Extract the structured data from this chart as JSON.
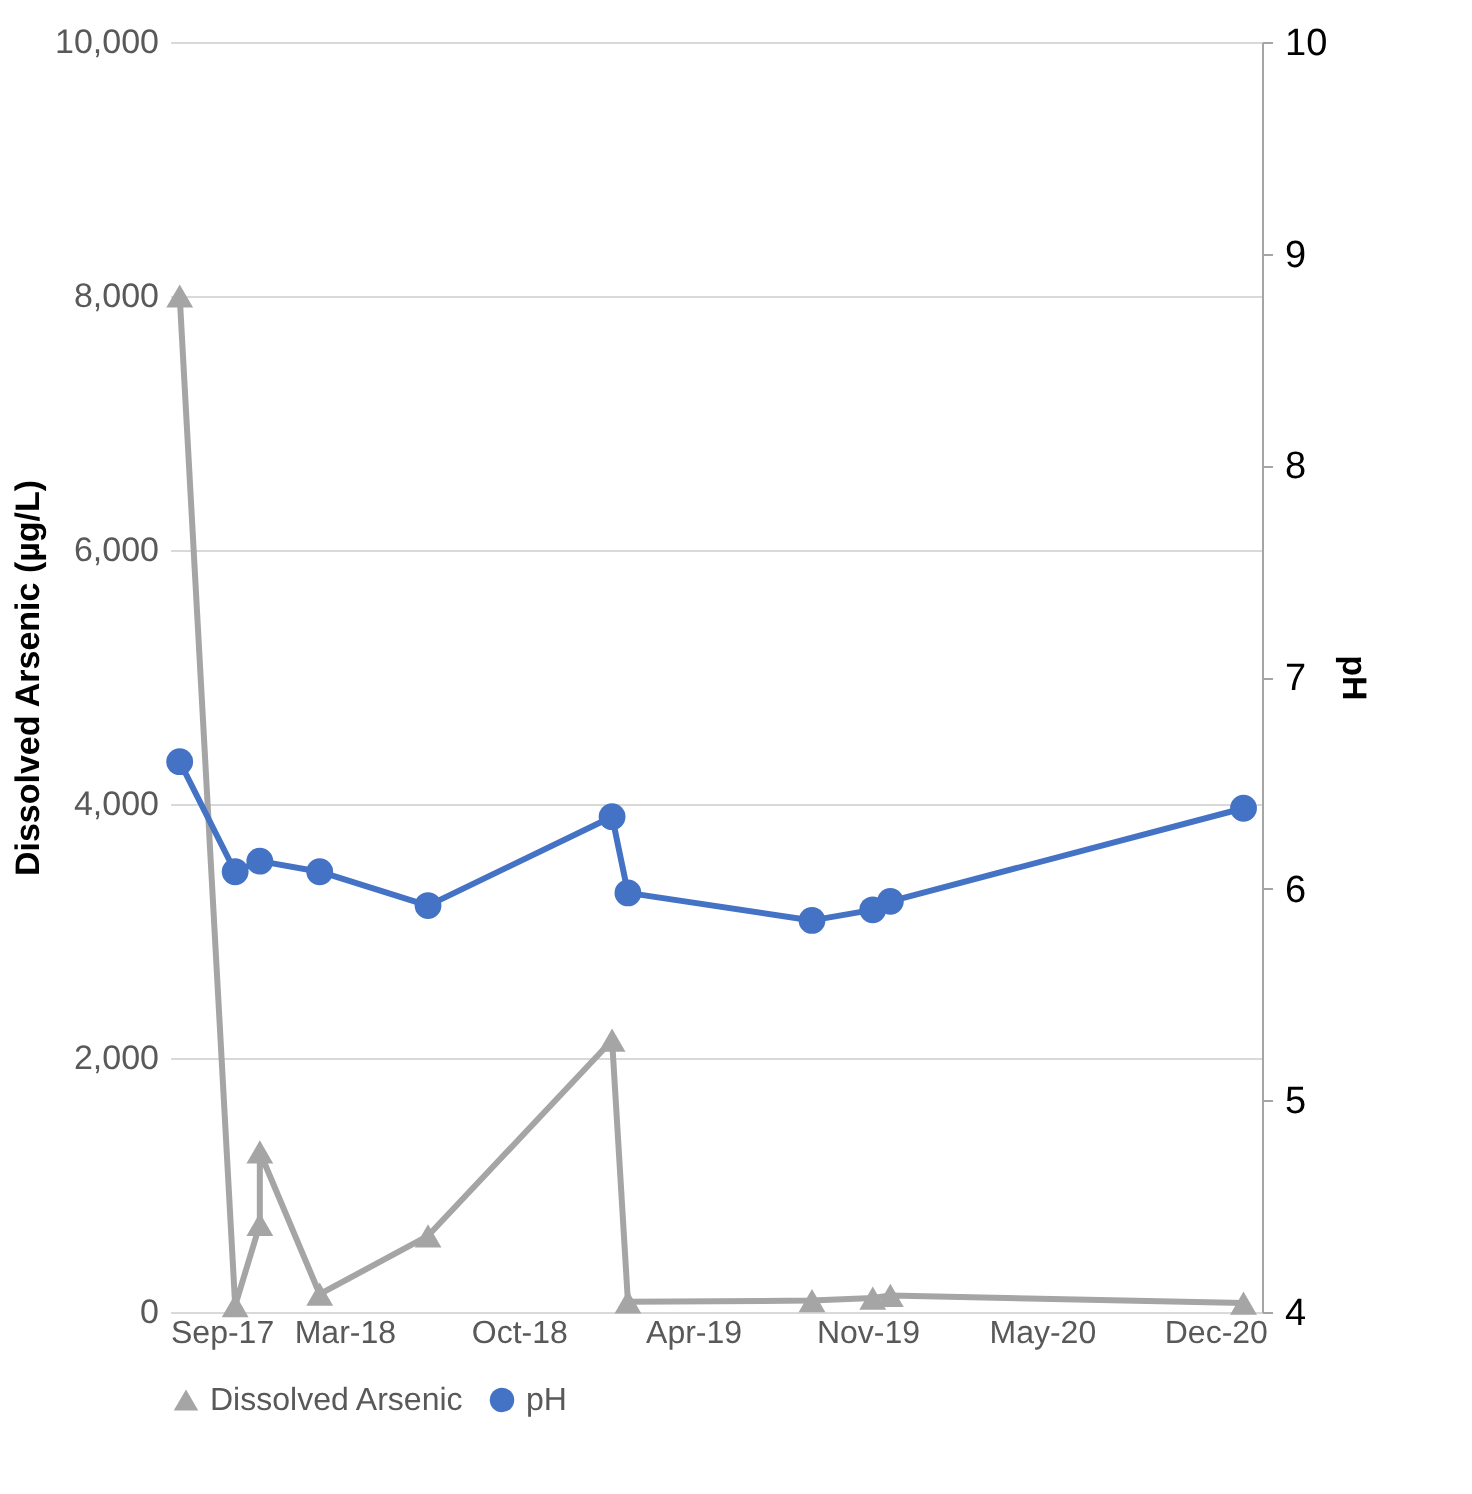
{
  "chart_data": {
    "type": "line",
    "ylabel": "Dissolved Arsenic (µg/L)",
    "y2label": "pH",
    "xlim": [
      "2017-09-01",
      "2021-01-23"
    ],
    "xticks": [
      {
        "value": "2017-09-01",
        "label": "Sep-17"
      },
      {
        "value": "2018-03-18",
        "label": "Mar-18"
      },
      {
        "value": "2018-10-02",
        "label": "Oct-18"
      },
      {
        "value": "2019-04-18",
        "label": "Apr-19"
      },
      {
        "value": "2019-11-02",
        "label": "Nov-19"
      },
      {
        "value": "2020-05-18",
        "label": "May-20"
      },
      {
        "value": "2020-12-01",
        "label": "Dec-20"
      }
    ],
    "ylim": [
      0,
      10000
    ],
    "yticks": [
      {
        "value": 0,
        "label": "0"
      },
      {
        "value": 2000,
        "label": "2,000"
      },
      {
        "value": 4000,
        "label": "4,000"
      },
      {
        "value": 6000,
        "label": "6,000"
      },
      {
        "value": 8000,
        "label": "8,000"
      },
      {
        "value": 10000,
        "label": "10,000"
      }
    ],
    "y2lim": [
      4,
      10
    ],
    "y2ticks": [
      4,
      5,
      6,
      7,
      8,
      9,
      10
    ],
    "grid": "y",
    "legend": "bottom",
    "series": [
      {
        "name": "Dissolved Arsenic",
        "color": "#a5a5a5",
        "marker": "triangle",
        "x": [
          "2017-09-12",
          "2017-11-14",
          "2017-12-12",
          "2017-12-12",
          "2018-02-18",
          "2018-06-21",
          "2019-01-16",
          "2019-02-03",
          "2019-08-31",
          "2019-11-08",
          "2019-11-28",
          "2021-01-02"
        ],
        "values": [
          8000,
          50,
          690,
          1260,
          140,
          600,
          2140,
          80,
          90,
          110,
          130,
          70
        ]
      },
      {
        "name": "pH",
        "color": "#4472c4",
        "marker": "circle",
        "axis": "y2",
        "x": [
          "2017-09-12",
          "2017-11-14",
          "2017-12-12",
          "2018-02-18",
          "2018-06-21",
          "2019-01-16",
          "2019-02-03",
          "2019-08-31",
          "2019-11-08",
          "2019-11-28",
          "2021-01-02"
        ],
        "values": [
          6.6,
          6.08,
          6.13,
          6.08,
          5.92,
          6.34,
          5.98,
          5.85,
          5.9,
          5.94,
          6.38
        ]
      }
    ]
  }
}
